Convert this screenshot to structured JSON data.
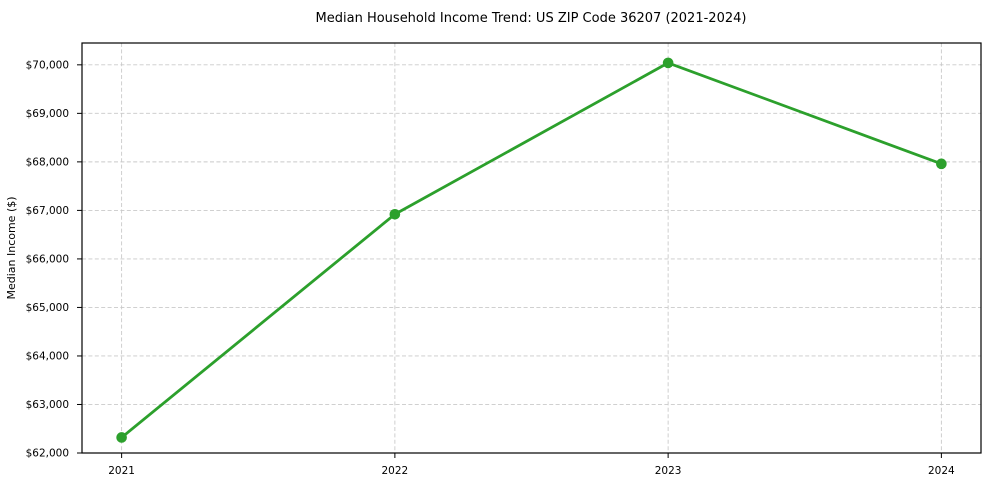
{
  "chart_data": {
    "type": "line",
    "title": "Median Household Income Trend: US ZIP Code 36207 (2021-2024)",
    "xlabel": "",
    "ylabel": "Median Income ($)",
    "x": [
      2021,
      2022,
      2023,
      2024
    ],
    "series": [
      {
        "name": "Median Household Income",
        "values": [
          62320,
          66920,
          70040,
          67960
        ]
      }
    ],
    "xlim": [
      2020.855,
      2024.145
    ],
    "ylim": [
      62000,
      70450
    ],
    "xticks": [
      2021,
      2022,
      2023,
      2024
    ],
    "xtick_labels": [
      "2021",
      "2022",
      "2023",
      "2024"
    ],
    "yticks": [
      62000,
      63000,
      64000,
      65000,
      66000,
      67000,
      68000,
      69000,
      70000
    ],
    "ytick_labels": [
      "$62,000",
      "$63,000",
      "$64,000",
      "$65,000",
      "$66,000",
      "$67,000",
      "$68,000",
      "$69,000",
      "$70,000"
    ],
    "grid": "dashed-both-axes",
    "legend": "none",
    "style": {
      "line_color": "#2ca02c",
      "marker": "circle",
      "marker_radius": 5.3,
      "line_width": 2.8,
      "grid_color": "#c9c9c9",
      "grid_dash": "4 2.4",
      "axis_color": "#000000",
      "tick_length": 5,
      "background": "#ffffff"
    }
  }
}
